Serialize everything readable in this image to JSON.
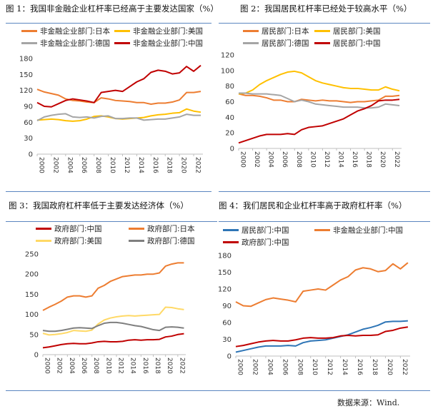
{
  "source": "数据来源：Wind.",
  "chart_data": [
    {
      "type": "line",
      "title": "图 1：我国非金融企业杠杆率已经高于主要发达国家（%）",
      "ylim": [
        0,
        180
      ],
      "yticks": [
        0,
        30,
        60,
        90,
        120,
        150,
        180
      ],
      "xticks": [
        "2000",
        "2002",
        "2004",
        "2006",
        "2008",
        "2010",
        "2012",
        "2014",
        "2016",
        "2018",
        "2020",
        "2022"
      ],
      "x": [
        2000,
        2001,
        2002,
        2003,
        2004,
        2005,
        2006,
        2007,
        2008,
        2009,
        2010,
        2011,
        2012,
        2013,
        2014,
        2015,
        2016,
        2017,
        2018,
        2019,
        2020,
        2021,
        2022,
        2023
      ],
      "grid": false,
      "series": [
        {
          "name": "非金融企业部门:日本",
          "color": "#ED7D31",
          "values": [
            122,
            117,
            114,
            111,
            104,
            101,
            100,
            98,
            97,
            106,
            104,
            101,
            100,
            99,
            97,
            97,
            94,
            96,
            96,
            98,
            102,
            116,
            116,
            118
          ]
        },
        {
          "name": "非金融企业部门:美国",
          "color": "#FFC000",
          "values": [
            64,
            65,
            66,
            65,
            63,
            62,
            63,
            66,
            71,
            72,
            70,
            67,
            66,
            67,
            68,
            69,
            72,
            74,
            75,
            77,
            78,
            85,
            81,
            79
          ]
        },
        {
          "name": "非金融企业部门:德国",
          "color": "#A5A5A5",
          "values": [
            63,
            70,
            73,
            75,
            76,
            70,
            69,
            70,
            68,
            71,
            72,
            67,
            67,
            68,
            68,
            64,
            65,
            66,
            66,
            68,
            70,
            75,
            73,
            73
          ]
        },
        {
          "name": "非金融企业部门:中国",
          "color": "#C00000",
          "values": [
            97,
            90,
            89,
            95,
            101,
            104,
            102,
            100,
            97,
            116,
            118,
            120,
            118,
            127,
            136,
            142,
            154,
            158,
            156,
            151,
            153,
            165,
            156,
            167
          ]
        }
      ]
    },
    {
      "type": "line",
      "title": "图 2：我国居民杠杆率已经处于较高水平（%）",
      "ylim": [
        0,
        120
      ],
      "yticks": [
        0,
        20,
        40,
        60,
        80,
        100,
        120
      ],
      "xticks": [
        "2000",
        "2002",
        "2004",
        "2006",
        "2008",
        "2010",
        "2012",
        "2014",
        "2016",
        "2018",
        "2020",
        "2022"
      ],
      "x": [
        2000,
        2001,
        2002,
        2003,
        2004,
        2005,
        2006,
        2007,
        2008,
        2009,
        2010,
        2011,
        2012,
        2013,
        2014,
        2015,
        2016,
        2017,
        2018,
        2019,
        2020,
        2021,
        2022,
        2023
      ],
      "grid": false,
      "series": [
        {
          "name": "居民部门:日本",
          "color": "#ED7D31",
          "values": [
            70,
            68,
            68,
            67,
            65,
            62,
            62,
            60,
            60,
            63,
            62,
            61,
            62,
            61,
            61,
            60,
            59,
            60,
            60,
            61,
            62,
            67,
            67,
            68
          ]
        },
        {
          "name": "居民部门:美国",
          "color": "#FFC000",
          "values": [
            70,
            71,
            75,
            82,
            87,
            91,
            95,
            98,
            99,
            97,
            92,
            87,
            84,
            82,
            80,
            78,
            77,
            77,
            76,
            75,
            75,
            79,
            76,
            74
          ]
        },
        {
          "name": "居民部门:德国",
          "color": "#A5A5A5",
          "values": [
            71,
            71,
            70,
            70,
            70,
            69,
            68,
            64,
            60,
            62,
            60,
            57,
            56,
            55,
            54,
            53,
            53,
            53,
            52,
            52,
            53,
            57,
            56,
            55
          ]
        },
        {
          "name": "居民部门:中国",
          "color": "#C00000",
          "values": [
            7,
            10,
            13,
            16,
            18,
            18,
            18,
            19,
            18,
            24,
            27,
            28,
            29,
            32,
            35,
            38,
            43,
            48,
            51,
            55,
            61,
            62,
            62,
            63
          ]
        }
      ]
    },
    {
      "type": "line",
      "title": "图 3：我国政府杠杆率低于主要发达经济体（%）",
      "ylim": [
        0,
        250
      ],
      "yticks": [
        0,
        50,
        100,
        150,
        200,
        250
      ],
      "xticks": [
        "2000",
        "2002",
        "2004",
        "2006",
        "2008",
        "2010",
        "2012",
        "2014",
        "2016",
        "2018",
        "2020",
        "2022"
      ],
      "x": [
        2000,
        2001,
        2002,
        2003,
        2004,
        2005,
        2006,
        2007,
        2008,
        2009,
        2010,
        2011,
        2012,
        2013,
        2014,
        2015,
        2016,
        2017,
        2018,
        2019,
        2020,
        2021,
        2022,
        2023
      ],
      "grid": false,
      "series": [
        {
          "name": "政府部门:中国",
          "color": "#C00000",
          "values": [
            17,
            19,
            22,
            25,
            27,
            28,
            27,
            27,
            29,
            32,
            33,
            32,
            32,
            33,
            36,
            37,
            36,
            37,
            37,
            38,
            44,
            46,
            50,
            52
          ]
        },
        {
          "name": "政府部门:日本",
          "color": "#ED7D31",
          "values": [
            110,
            118,
            125,
            133,
            143,
            146,
            146,
            143,
            146,
            165,
            172,
            182,
            188,
            194,
            196,
            198,
            198,
            200,
            200,
            203,
            220,
            225,
            228,
            228
          ]
        },
        {
          "name": "政府部门:美国",
          "color": "#FFD966",
          "values": [
            53,
            49,
            50,
            52,
            55,
            60,
            59,
            58,
            61,
            76,
            86,
            91,
            94,
            96,
            97,
            96,
            97,
            98,
            99,
            100,
            118,
            117,
            114,
            112
          ]
        },
        {
          "name": "政府部门:德国",
          "color": "#7F7F7F",
          "values": [
            60,
            58,
            58,
            60,
            63,
            66,
            67,
            66,
            65,
            72,
            78,
            80,
            80,
            78,
            75,
            72,
            70,
            66,
            62,
            60,
            68,
            69,
            68,
            66
          ]
        }
      ]
    },
    {
      "type": "line",
      "title": "图 4：我们居民和企业杠杆率高于政府杠杆率（%）",
      "ylim": [
        0,
        180
      ],
      "yticks": [
        0,
        30,
        60,
        90,
        120,
        150,
        180
      ],
      "xticks": [
        "2000",
        "2002",
        "2004",
        "2006",
        "2008",
        "2010",
        "2012",
        "2014",
        "2016",
        "2018",
        "2020",
        "2022"
      ],
      "x": [
        2000,
        2001,
        2002,
        2003,
        2004,
        2005,
        2006,
        2007,
        2008,
        2009,
        2010,
        2011,
        2012,
        2013,
        2014,
        2015,
        2016,
        2017,
        2018,
        2019,
        2020,
        2021,
        2022,
        2023
      ],
      "grid": false,
      "series": [
        {
          "name": "居民部门:中国",
          "color": "#2E75B6",
          "values": [
            7,
            10,
            13,
            16,
            18,
            18,
            18,
            19,
            18,
            24,
            27,
            28,
            29,
            32,
            35,
            38,
            43,
            48,
            51,
            55,
            61,
            62,
            62,
            63
          ]
        },
        {
          "name": "非金融企业部门:中国",
          "color": "#ED7D31",
          "values": [
            97,
            90,
            89,
            95,
            101,
            104,
            102,
            100,
            97,
            116,
            118,
            120,
            118,
            127,
            136,
            142,
            154,
            158,
            156,
            151,
            153,
            165,
            156,
            167
          ]
        },
        {
          "name": "政府部门:中国",
          "color": "#C00000",
          "values": [
            17,
            19,
            22,
            25,
            27,
            28,
            27,
            27,
            29,
            32,
            33,
            32,
            32,
            33,
            36,
            37,
            36,
            37,
            37,
            38,
            44,
            46,
            50,
            52
          ]
        }
      ]
    }
  ]
}
